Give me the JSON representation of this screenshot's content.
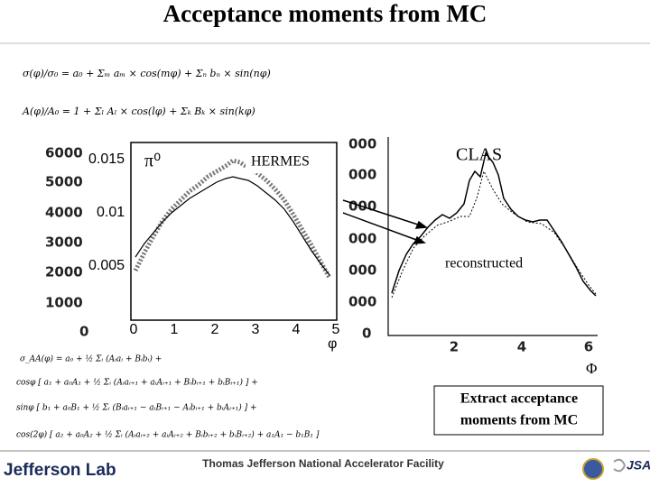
{
  "title": "Acceptance moments from MC",
  "formulas_top": [
    "σ(φ)/σ₀ = a₀ + Σₘ aₘ × cos(mφ) + Σₙ bₙ × sin(nφ)",
    "A(φ)/A₀ = 1 + Σₗ Aₗ × cos(lφ) + Σₖ Bₖ × sin(kφ)"
  ],
  "left_plot": {
    "label": "HERMES",
    "particle": "π⁰",
    "back_y_ticks": [
      "6000",
      "5000",
      "4000",
      "3000",
      "2000",
      "1000",
      "0"
    ],
    "y_ticks": [
      "0.015",
      "0.01",
      "0.005"
    ],
    "x_ticks": [
      "0",
      "1",
      "2",
      "3",
      "4",
      "5"
    ],
    "x_label": "φ"
  },
  "right_plot": {
    "label": "CLAS",
    "annotation": "reconstructed",
    "y_ticks": [
      "000",
      "000",
      "000",
      "000",
      "000",
      "000",
      "0"
    ],
    "x_ticks": [
      "2",
      "4",
      "6"
    ],
    "x_label": "Φ"
  },
  "formulas_bottom": [
    "σ_AA(φ) = a₀ + ½ Σᵢ (Aᵢaᵢ + Bᵢbᵢ) +",
    "cosφ [ a₁ + a₀A₁ + ½ Σᵢ (Aᵢaᵢ₊₁ + aᵢAᵢ₊₁ + Bᵢbᵢ₊₁ + bᵢBᵢ₊₁) ] +",
    "sinφ [ b₁ + a₀B₁ + ½ Σᵢ (Bᵢaᵢ₊₁ − aᵢBᵢ₊₁ − Aᵢbᵢ₊₁ + bᵢAᵢ₊₁) ] +",
    "cos(2φ) [ a₂ + a₀A₂ + ½ Σᵢ (Aᵢaᵢ₊₂ + aᵢAᵢ₊₂ + Bᵢbᵢ₊₂ + bᵢBᵢ₊₂) + a₁A₁ − b₁B₁ ]"
  ],
  "note": [
    "Extract acceptance",
    "moments from MC"
  ],
  "footer": {
    "left": "Jefferson Lab",
    "center": "Thomas Jefferson National Accelerator Facility",
    "right": "JSA"
  }
}
